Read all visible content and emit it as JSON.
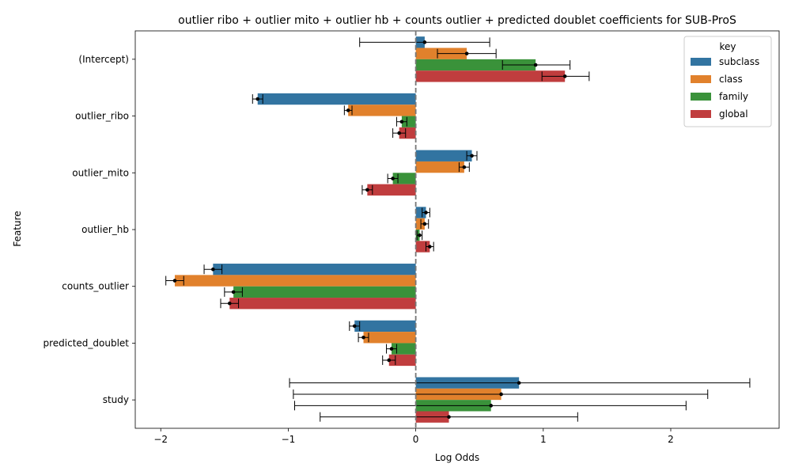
{
  "chart_data": {
    "type": "bar",
    "orientation": "horizontal",
    "title": "outlier ribo + outlier mito + outlier hb + counts outlier + predicted doublet coefficients for SUB-ProS",
    "xlabel": "Log Odds",
    "ylabel": "Feature",
    "xlim": [
      -2.2,
      2.85
    ],
    "xticks": [
      -2,
      -1,
      0,
      1,
      2
    ],
    "xtick_labels": [
      "−2",
      "−1",
      "0",
      "1",
      "2"
    ],
    "reference_line": 0,
    "legend": {
      "title": "key",
      "placement": "top-right"
    },
    "categories": [
      "(Intercept)",
      "outlier_ribo",
      "outlier_mito",
      "outlier_hb",
      "counts_outlier",
      "predicted_doublet",
      "study"
    ],
    "series": [
      {
        "name": "subclass",
        "color": "#3274a1",
        "values": [
          0.07,
          -1.24,
          0.44,
          0.08,
          -1.59,
          -0.48,
          0.81
        ],
        "ci_low": [
          -0.44,
          -1.28,
          0.4,
          0.05,
          -1.66,
          -0.52,
          -0.99
        ],
        "ci_high": [
          0.58,
          -1.2,
          0.48,
          0.11,
          -1.52,
          -0.44,
          2.62
        ]
      },
      {
        "name": "class",
        "color": "#e1812c",
        "values": [
          0.4,
          -0.53,
          0.38,
          0.07,
          -1.89,
          -0.41,
          0.67
        ],
        "ci_low": [
          0.17,
          -0.56,
          0.34,
          0.04,
          -1.96,
          -0.45,
          -0.96
        ],
        "ci_high": [
          0.63,
          -0.5,
          0.42,
          0.1,
          -1.82,
          -0.37,
          2.29
        ]
      },
      {
        "name": "family",
        "color": "#3a923a",
        "values": [
          0.94,
          -0.11,
          -0.18,
          0.03,
          -1.43,
          -0.19,
          0.59
        ],
        "ci_low": [
          0.68,
          -0.15,
          -0.22,
          0.01,
          -1.5,
          -0.23,
          -0.95
        ],
        "ci_high": [
          1.21,
          -0.07,
          -0.14,
          0.05,
          -1.36,
          -0.15,
          2.12
        ]
      },
      {
        "name": "global",
        "color": "#c03d3e",
        "values": [
          1.17,
          -0.13,
          -0.38,
          0.11,
          -1.46,
          -0.21,
          0.26
        ],
        "ci_low": [
          0.99,
          -0.18,
          -0.42,
          0.08,
          -1.53,
          -0.26,
          -0.75
        ],
        "ci_high": [
          1.36,
          -0.08,
          -0.34,
          0.14,
          -1.39,
          -0.16,
          1.27
        ]
      }
    ]
  }
}
